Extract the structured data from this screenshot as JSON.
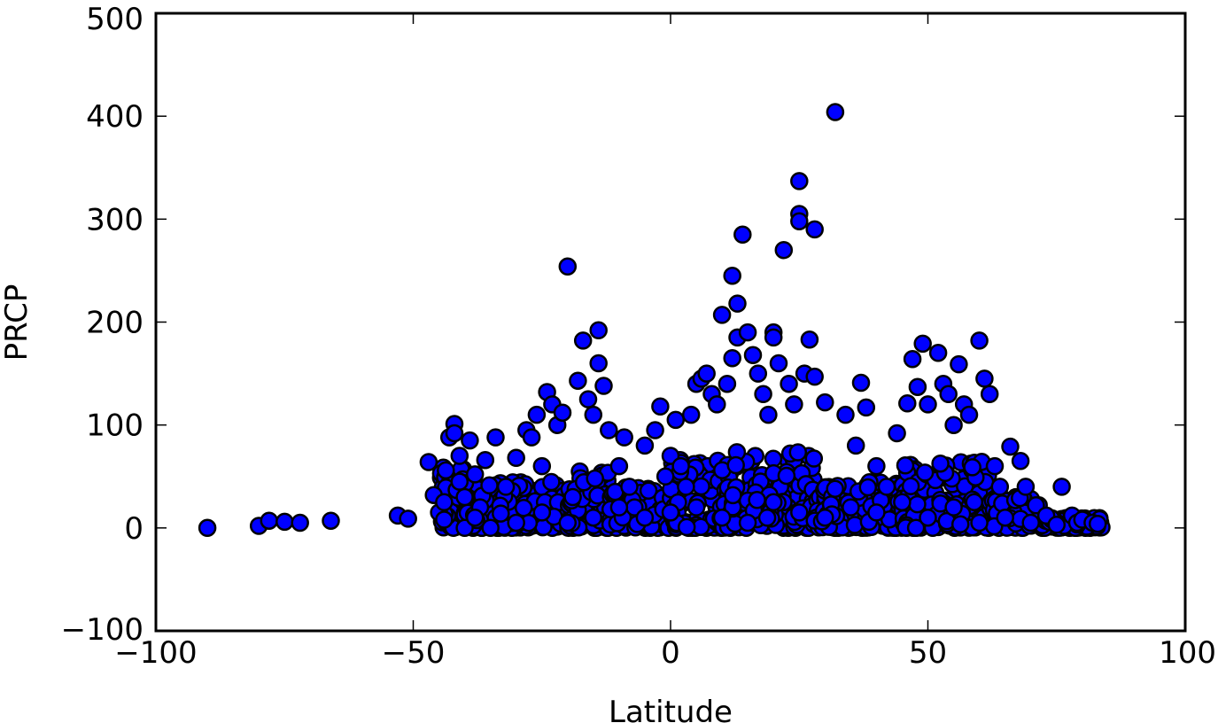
{
  "chart_data": {
    "type": "scatter",
    "title": "",
    "xlabel": "Latitude",
    "ylabel": "PRCP",
    "xlim": [
      -100,
      100
    ],
    "ylim": [
      -100,
      500
    ],
    "xticks": [
      -100,
      -50,
      0,
      50,
      100
    ],
    "xtick_labels": [
      "−100",
      "−50",
      "0",
      "50",
      "100"
    ],
    "yticks": [
      -100,
      0,
      100,
      200,
      300,
      400,
      500
    ],
    "ytick_labels": [
      "−100",
      "0",
      "100",
      "200",
      "300",
      "400",
      "500"
    ],
    "grid": false,
    "marker_color": "#0000ff",
    "marker_edge_color": "#000000",
    "series": [
      {
        "points": [
          [
            -90,
            0
          ],
          [
            -80,
            2
          ],
          [
            -78,
            7
          ],
          [
            -75,
            6
          ],
          [
            -72,
            5
          ],
          [
            -66,
            7
          ],
          [
            -53,
            12
          ],
          [
            -51,
            9
          ],
          [
            -47,
            64
          ],
          [
            -46,
            32
          ],
          [
            -45,
            15
          ],
          [
            -44,
            8
          ],
          [
            -43,
            88
          ],
          [
            -42,
            101
          ],
          [
            -42,
            92
          ],
          [
            -41,
            70
          ],
          [
            -41,
            45
          ],
          [
            -40,
            30
          ],
          [
            -40,
            0
          ],
          [
            -39,
            85
          ],
          [
            -38,
            52
          ],
          [
            -37,
            20
          ],
          [
            -36,
            66
          ],
          [
            -35,
            0
          ],
          [
            -34,
            88
          ],
          [
            -33,
            14
          ],
          [
            -32,
            40
          ],
          [
            -30,
            68
          ],
          [
            -28,
            95
          ],
          [
            -27,
            88
          ],
          [
            -26,
            110
          ],
          [
            -25,
            60
          ],
          [
            -24,
            132
          ],
          [
            -23,
            120
          ],
          [
            -22,
            100
          ],
          [
            -21,
            112
          ],
          [
            -20,
            254
          ],
          [
            -19,
            30
          ],
          [
            -18,
            143
          ],
          [
            -17,
            182
          ],
          [
            -16,
            125
          ],
          [
            -15,
            110
          ],
          [
            -14,
            192
          ],
          [
            -14,
            160
          ],
          [
            -13,
            138
          ],
          [
            -12,
            95
          ],
          [
            -10,
            60
          ],
          [
            -9,
            88
          ],
          [
            -8,
            40
          ],
          [
            -7,
            20
          ],
          [
            -5,
            80
          ],
          [
            -3,
            95
          ],
          [
            -2,
            118
          ],
          [
            -1,
            50
          ],
          [
            0,
            70
          ],
          [
            1,
            105
          ],
          [
            2,
            60
          ],
          [
            3,
            40
          ],
          [
            4,
            110
          ],
          [
            5,
            140
          ],
          [
            6,
            145
          ],
          [
            7,
            150
          ],
          [
            8,
            130
          ],
          [
            9,
            120
          ],
          [
            10,
            207
          ],
          [
            11,
            140
          ],
          [
            12,
            245
          ],
          [
            12,
            165
          ],
          [
            13,
            185
          ],
          [
            13,
            218
          ],
          [
            14,
            285
          ],
          [
            15,
            190
          ],
          [
            16,
            168
          ],
          [
            17,
            150
          ],
          [
            18,
            130
          ],
          [
            19,
            110
          ],
          [
            20,
            190
          ],
          [
            20,
            185
          ],
          [
            21,
            160
          ],
          [
            22,
            270
          ],
          [
            23,
            140
          ],
          [
            24,
            120
          ],
          [
            25,
            337
          ],
          [
            25,
            305
          ],
          [
            25,
            298
          ],
          [
            26,
            150
          ],
          [
            27,
            183
          ],
          [
            28,
            290
          ],
          [
            28,
            147
          ],
          [
            30,
            122
          ],
          [
            32,
            404
          ],
          [
            34,
            110
          ],
          [
            36,
            80
          ],
          [
            37,
            141
          ],
          [
            38,
            117
          ],
          [
            40,
            60
          ],
          [
            42,
            40
          ],
          [
            44,
            92
          ],
          [
            46,
            121
          ],
          [
            47,
            164
          ],
          [
            48,
            137
          ],
          [
            49,
            179
          ],
          [
            50,
            120
          ],
          [
            52,
            170
          ],
          [
            53,
            140
          ],
          [
            54,
            130
          ],
          [
            55,
            100
          ],
          [
            56,
            159
          ],
          [
            57,
            120
          ],
          [
            58,
            110
          ],
          [
            60,
            182
          ],
          [
            61,
            145
          ],
          [
            62,
            130
          ],
          [
            63,
            60
          ],
          [
            64,
            40
          ],
          [
            66,
            79
          ],
          [
            68,
            65
          ],
          [
            69,
            40
          ],
          [
            71,
            22
          ],
          [
            73,
            12
          ],
          [
            76,
            40
          ],
          [
            78,
            12
          ],
          [
            79,
            5
          ],
          [
            80,
            8
          ],
          [
            82,
            5
          ],
          [
            83,
            4
          ],
          [
            -44,
            25
          ],
          [
            -38,
            10
          ],
          [
            -30,
            5
          ],
          [
            -25,
            15
          ],
          [
            -20,
            5
          ],
          [
            -15,
            10
          ],
          [
            -10,
            20
          ],
          [
            -5,
            10
          ],
          [
            0,
            15
          ],
          [
            5,
            20
          ],
          [
            10,
            10
          ],
          [
            15,
            5
          ],
          [
            20,
            25
          ],
          [
            25,
            15
          ],
          [
            30,
            10
          ],
          [
            35,
            20
          ],
          [
            40,
            15
          ],
          [
            45,
            25
          ],
          [
            50,
            10
          ],
          [
            55,
            20
          ],
          [
            60,
            5
          ],
          [
            65,
            10
          ],
          [
            70,
            5
          ],
          [
            75,
            3
          ]
        ]
      }
    ]
  }
}
